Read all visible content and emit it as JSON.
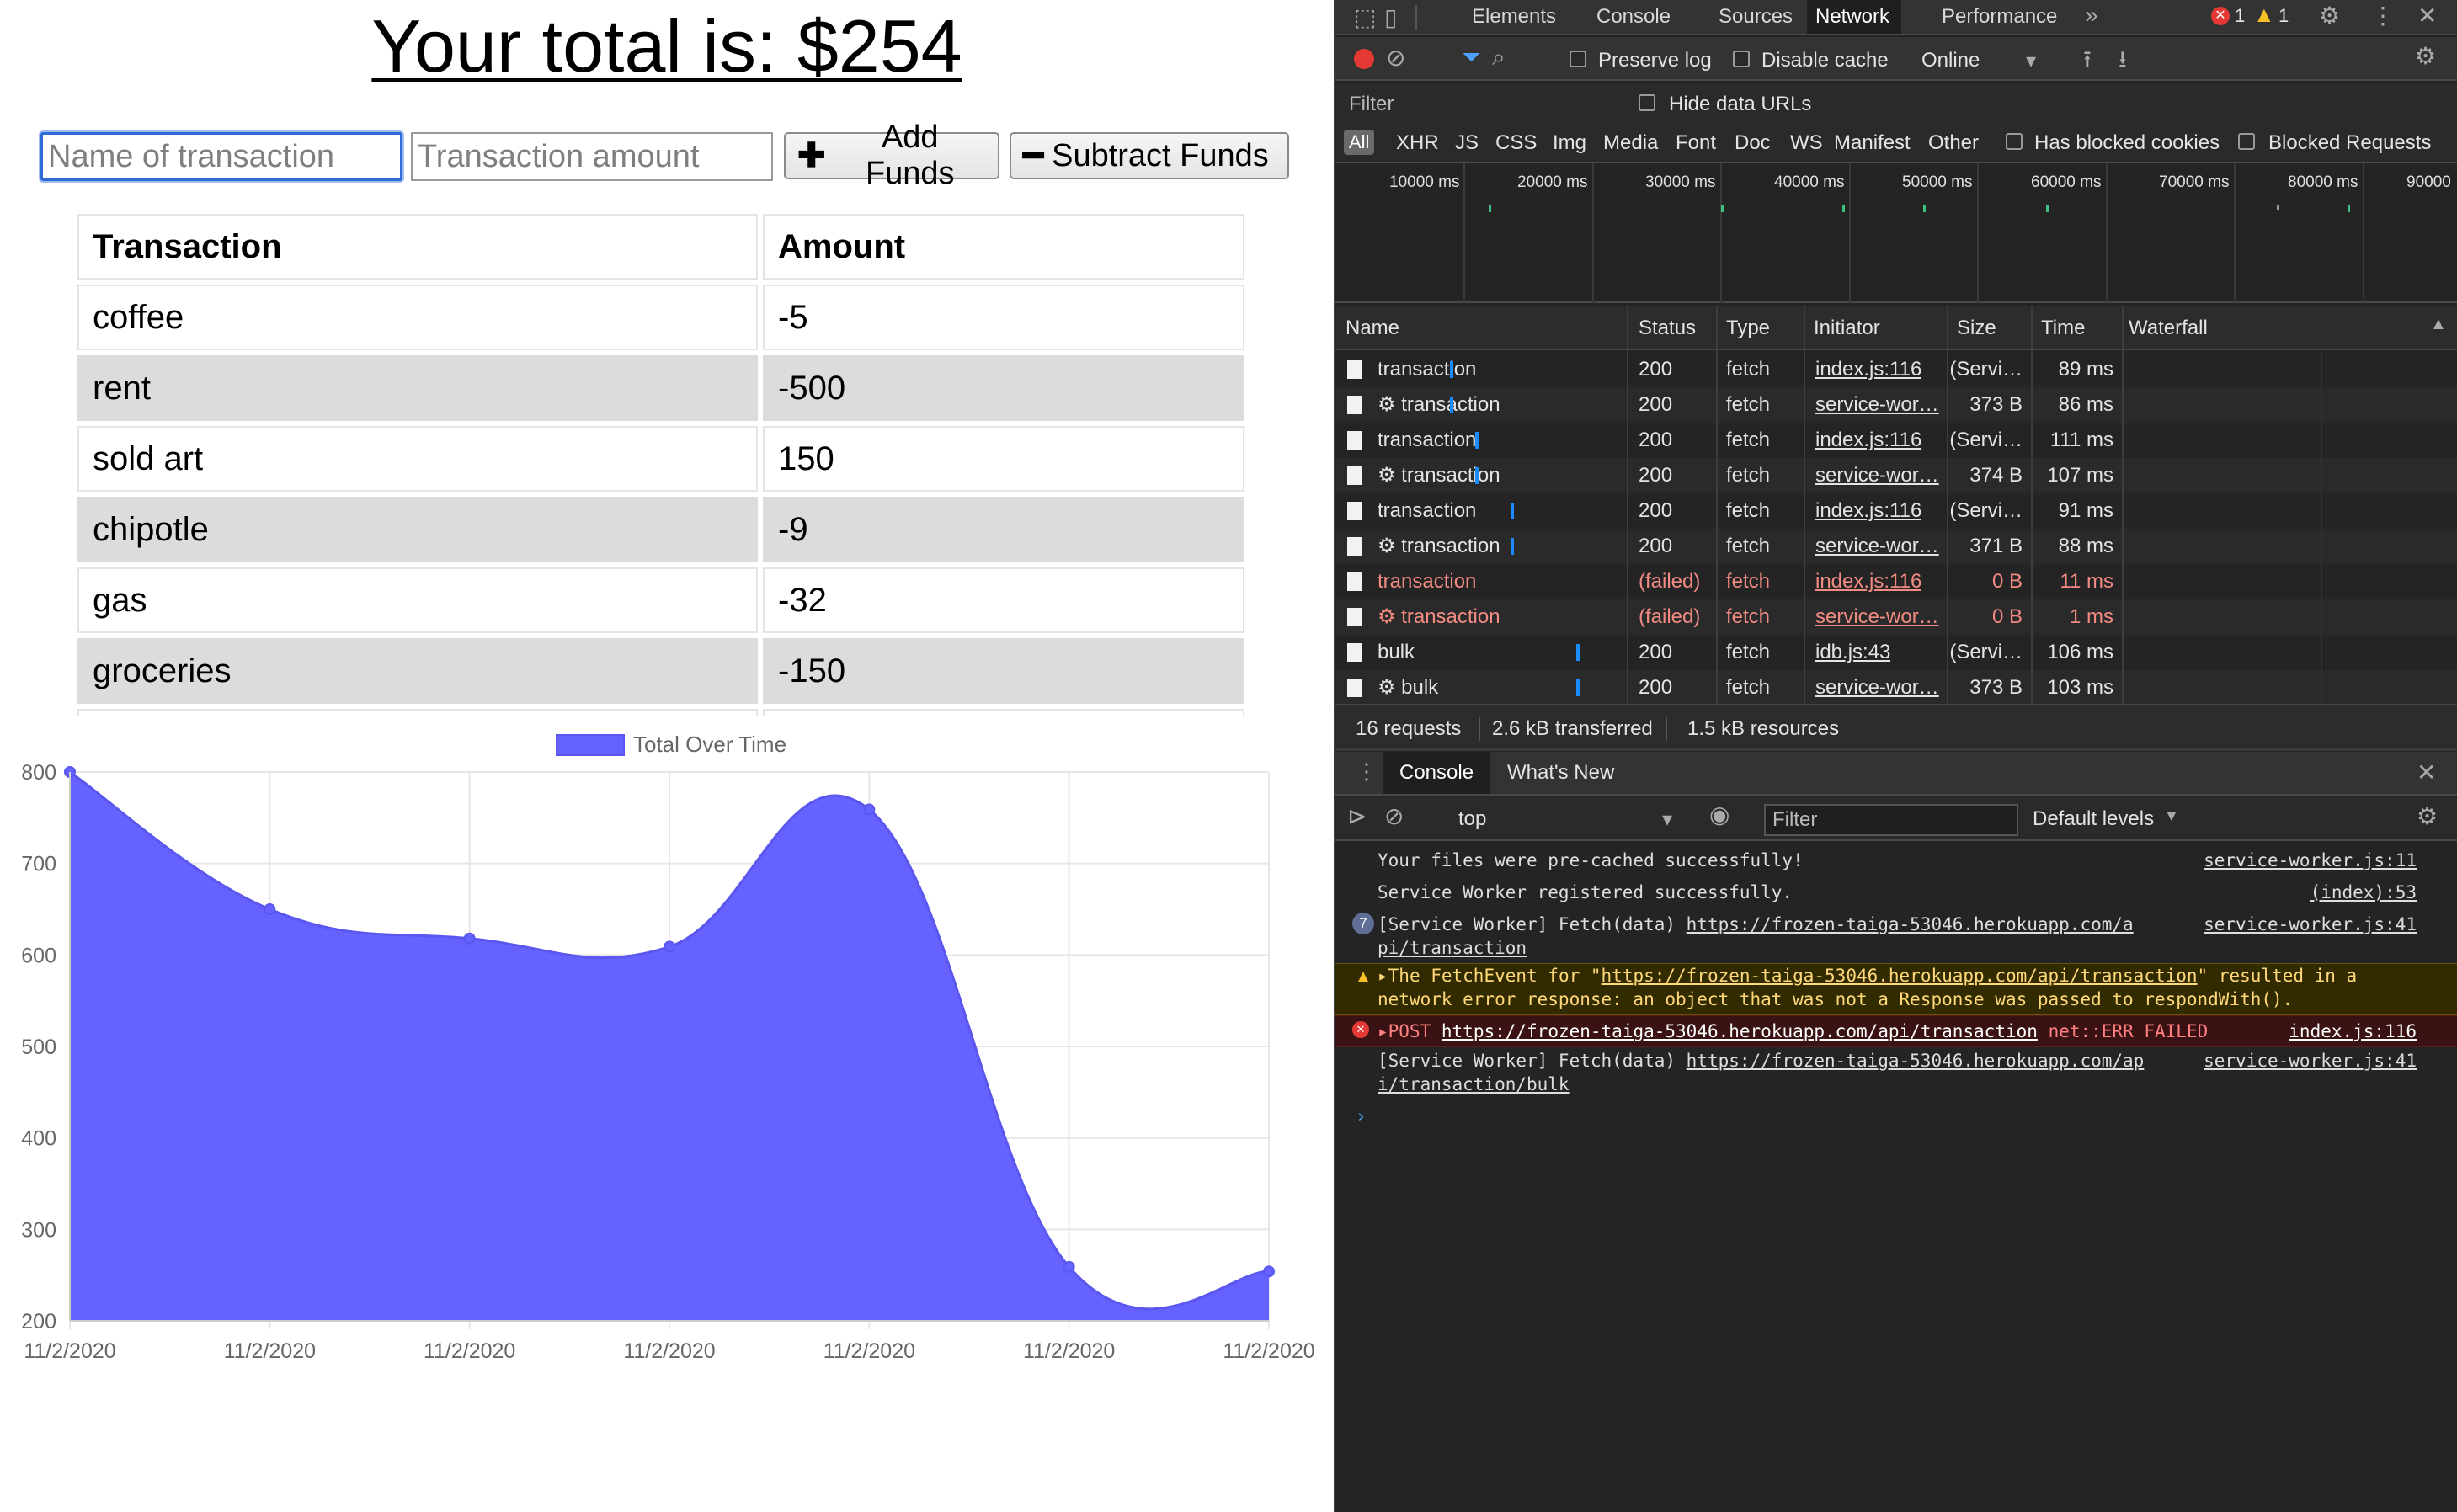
{
  "app": {
    "title": "Your total is: $254",
    "name_placeholder": "Name of transaction",
    "amount_placeholder": "Transaction amount",
    "add_label": "Add Funds",
    "subtract_label": "Subtract Funds",
    "table": {
      "headers": [
        "Transaction",
        "Amount"
      ],
      "rows": [
        [
          "coffee",
          "-5"
        ],
        [
          "rent",
          "-500"
        ],
        [
          "sold art",
          "150"
        ],
        [
          "chipotle",
          "-9"
        ],
        [
          "gas",
          "-32"
        ],
        [
          "groceries",
          "-150"
        ]
      ]
    }
  },
  "chart_data": {
    "type": "area",
    "title": "",
    "legend": [
      "Total Over Time"
    ],
    "legend_position": "top",
    "x": [
      "11/2/2020",
      "11/2/2020",
      "11/2/2020",
      "11/2/2020",
      "11/2/2020",
      "11/2/2020",
      "11/2/2020"
    ],
    "series": [
      {
        "name": "Total Over Time",
        "values": [
          800,
          650,
          618,
          609,
          759,
          259,
          254
        ]
      }
    ],
    "ylim": [
      200,
      800
    ],
    "yticks": [
      200,
      300,
      400,
      500,
      600,
      700,
      800
    ],
    "grid": true,
    "color": "#6662ff"
  },
  "devtools": {
    "tabs": [
      "Elements",
      "Console",
      "Sources",
      "Network",
      "Performance"
    ],
    "active_tab": "Network",
    "error_count": "1",
    "warning_count": "1",
    "toolbar": {
      "preserve_log": "Preserve log",
      "disable_cache": "Disable cache",
      "throttle": "Online"
    },
    "filter": {
      "placeholder": "Filter",
      "hide_data_urls": "Hide data URLs",
      "types": [
        "All",
        "XHR",
        "JS",
        "CSS",
        "Img",
        "Media",
        "Font",
        "Doc",
        "WS",
        "Manifest",
        "Other"
      ],
      "has_blocked_cookies": "Has blocked cookies",
      "blocked_requests": "Blocked Requests"
    },
    "timeline_labels": [
      "10000 ms",
      "20000 ms",
      "30000 ms",
      "40000 ms",
      "50000 ms",
      "60000 ms",
      "70000 ms",
      "80000 ms",
      "90000"
    ],
    "columns": [
      "Name",
      "Status",
      "Type",
      "Initiator",
      "Size",
      "Time",
      "Waterfall"
    ],
    "requests": [
      {
        "name": "transaction",
        "status": "200",
        "type": "fetch",
        "initiator": "index.js:116",
        "size": "(Servi…",
        "time": "89 ms",
        "gear": false,
        "failed": false
      },
      {
        "name": "transaction",
        "status": "200",
        "type": "fetch",
        "initiator": "service-wor…",
        "size": "373 B",
        "time": "86 ms",
        "gear": true,
        "failed": false
      },
      {
        "name": "transaction",
        "status": "200",
        "type": "fetch",
        "initiator": "index.js:116",
        "size": "(Servi…",
        "time": "111 ms",
        "gear": false,
        "failed": false
      },
      {
        "name": "transaction",
        "status": "200",
        "type": "fetch",
        "initiator": "service-wor…",
        "size": "374 B",
        "time": "107 ms",
        "gear": true,
        "failed": false
      },
      {
        "name": "transaction",
        "status": "200",
        "type": "fetch",
        "initiator": "index.js:116",
        "size": "(Servi…",
        "time": "91 ms",
        "gear": false,
        "failed": false
      },
      {
        "name": "transaction",
        "status": "200",
        "type": "fetch",
        "initiator": "service-wor…",
        "size": "371 B",
        "time": "88 ms",
        "gear": true,
        "failed": false
      },
      {
        "name": "transaction",
        "status": "(failed)",
        "type": "fetch",
        "initiator": "index.js:116",
        "size": "0 B",
        "time": "11 ms",
        "gear": false,
        "failed": true
      },
      {
        "name": "transaction",
        "status": "(failed)",
        "type": "fetch",
        "initiator": "service-wor…",
        "size": "0 B",
        "time": "1 ms",
        "gear": true,
        "failed": true
      },
      {
        "name": "bulk",
        "status": "200",
        "type": "fetch",
        "initiator": "idb.js:43",
        "size": "(Servi…",
        "time": "106 ms",
        "gear": false,
        "failed": false
      },
      {
        "name": "bulk",
        "status": "200",
        "type": "fetch",
        "initiator": "service-wor…",
        "size": "373 B",
        "time": "103 ms",
        "gear": true,
        "failed": false
      }
    ],
    "summary": {
      "requests": "16 requests",
      "transferred": "2.6 kB transferred",
      "resources": "1.5 kB resources"
    },
    "console": {
      "tabs": [
        "Console",
        "What's New"
      ],
      "context": "top",
      "filter_placeholder": "Filter",
      "levels": "Default levels",
      "messages": [
        {
          "kind": "log",
          "text": "Your files were pre-cached successfully!",
          "source": "service-worker.js:11"
        },
        {
          "kind": "log",
          "text": "Service Worker registered successfully.",
          "source": "(index):53"
        },
        {
          "kind": "log",
          "count": "7",
          "text_prefix": "[Service Worker] Fetch(data) ",
          "link1": "https://frozen-taiga-53046.herokuapp.com/a",
          "link2": "pi/transaction",
          "source": "service-worker.js:41"
        },
        {
          "kind": "warn",
          "text1_prefix": "The FetchEvent for \"",
          "link": "https://frozen-taiga-53046.herokuapp.com/api/transaction",
          "text1_suffix": "\" resulted in a",
          "text2": "network error response: an object that was not a Response was passed to respondWith()."
        },
        {
          "kind": "error",
          "method": "POST",
          "link": "https://frozen-taiga-53046.herokuapp.com/api/transaction",
          "status": "net::ERR_FAILED",
          "source": "index.js:116"
        },
        {
          "kind": "log",
          "text_prefix": "[Service Worker] Fetch(data) ",
          "link1": "https://frozen-taiga-53046.herokuapp.com/ap",
          "link2": "i/transaction/bulk",
          "source": "service-worker.js:41"
        }
      ]
    }
  }
}
